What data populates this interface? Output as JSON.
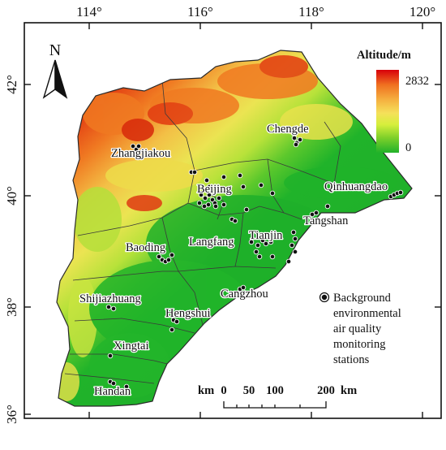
{
  "longitude_ticks": [
    "114°",
    "116°",
    "118°",
    "120°"
  ],
  "latitude_ticks": [
    "42°",
    "40°",
    "38°",
    "36°"
  ],
  "north_arrow": {
    "label": "N"
  },
  "altitude_legend": {
    "title": "Altitude/m",
    "max_label": "2832",
    "min_label": "0",
    "colors": [
      "#d8000a",
      "#f07020",
      "#f5b040",
      "#f5e05a",
      "#d6ef3c",
      "#7ed02a",
      "#22b22a"
    ]
  },
  "cities": [
    {
      "name": "Chengde"
    },
    {
      "name": "Zhangjiakou"
    },
    {
      "name": "Beijing"
    },
    {
      "name": "Qinhuangdao"
    },
    {
      "name": "Tangshan"
    },
    {
      "name": "Langfang"
    },
    {
      "name": "Tianjin"
    },
    {
      "name": "Baoding"
    },
    {
      "name": "Cangzhou"
    },
    {
      "name": "Shijiazhuang"
    },
    {
      "name": "Hengshui"
    },
    {
      "name": "Xingtai"
    },
    {
      "name": "Handan"
    }
  ],
  "station_legend": {
    "lines": [
      "Background",
      "environmental",
      "air quality",
      "monitoring",
      "stations"
    ]
  },
  "scale_bar": {
    "unit_label": "km",
    "labels": [
      "0",
      "50",
      "100",
      "200"
    ],
    "end_unit": "km"
  },
  "colors": {
    "lowland": "#20b32a",
    "highland": "#e24a14",
    "boundary": "#3a3a3a",
    "station_fill": "#111111",
    "station_ring": "#ffffff"
  }
}
